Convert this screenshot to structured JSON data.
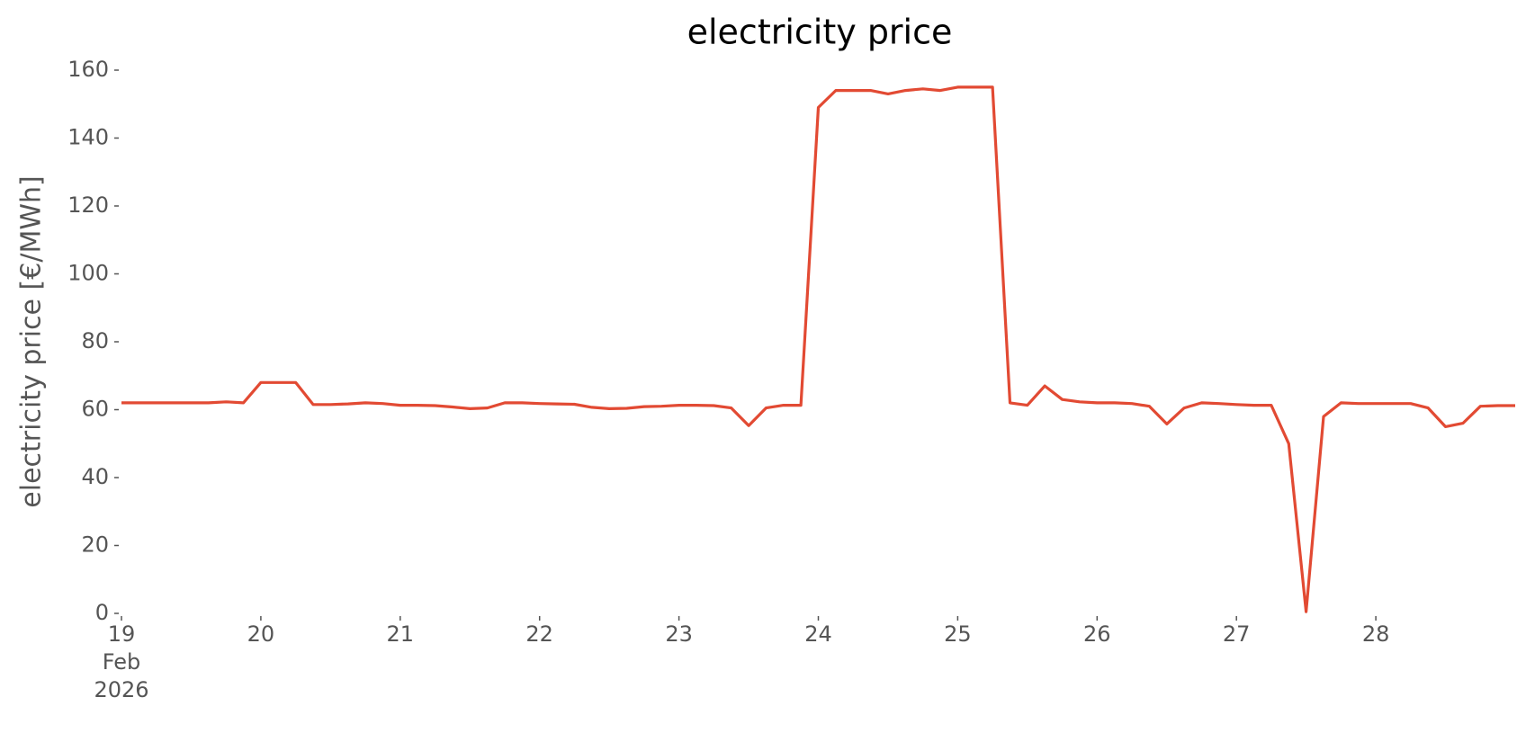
{
  "chart_data": {
    "type": "line",
    "title": "electricity price",
    "ylabel": "electricity price [€/MWh]",
    "x": [
      19,
      19.125,
      19.25,
      19.375,
      19.5,
      19.625,
      19.75,
      19.875,
      20,
      20.125,
      20.25,
      20.375,
      20.5,
      20.625,
      20.75,
      20.875,
      21,
      21.125,
      21.25,
      21.375,
      21.5,
      21.625,
      21.75,
      21.875,
      22,
      22.125,
      22.25,
      22.375,
      22.5,
      22.625,
      22.75,
      22.875,
      23,
      23.125,
      23.25,
      23.375,
      23.5,
      23.625,
      23.75,
      23.875,
      24,
      24.125,
      24.25,
      24.375,
      24.5,
      24.625,
      24.75,
      24.875,
      25,
      25.125,
      25.25,
      25.375,
      25.5,
      25.625,
      25.75,
      25.875,
      26,
      26.125,
      26.25,
      26.375,
      26.5,
      26.625,
      26.75,
      26.875,
      27,
      27.125,
      27.25,
      27.375,
      27.5,
      27.625,
      27.75,
      27.875,
      28,
      28.125,
      28.25,
      28.375,
      28.5,
      28.625,
      28.75,
      28.875,
      29
    ],
    "series": [
      {
        "name": "electricity price",
        "color": "#e24a33",
        "values": [
          62,
          62,
          62,
          62,
          62,
          62,
          62.3,
          62,
          68,
          68,
          68,
          61.5,
          61.5,
          61.7,
          62,
          61.8,
          61.3,
          61.3,
          61.2,
          60.8,
          60.3,
          60.5,
          62,
          62,
          61.8,
          61.7,
          61.6,
          60.7,
          60.3,
          60.4,
          60.9,
          61,
          61.3,
          61.3,
          61.2,
          60.5,
          55.3,
          60.5,
          61.3,
          61.3,
          149,
          154,
          154,
          154,
          153,
          154,
          154.5,
          154,
          155,
          155,
          155,
          62,
          61.3,
          67,
          63,
          62.3,
          62,
          62,
          61.8,
          61,
          55.8,
          60.5,
          62,
          61.8,
          61.5,
          61.3,
          61.3,
          50,
          0.5,
          58,
          62,
          61.8,
          61.8,
          61.8,
          61.8,
          60.5,
          55,
          56,
          61,
          61.2,
          61.2
        ]
      }
    ],
    "xlim": [
      19,
      29
    ],
    "xticks": [
      {
        "value": 19,
        "label": "19\nFeb\n2026"
      },
      20,
      21,
      22,
      23,
      24,
      25,
      26,
      27,
      28
    ],
    "ylim": [
      0,
      160
    ],
    "yticks": [
      0,
      20,
      40,
      60,
      80,
      100,
      120,
      140,
      160
    ],
    "grid": false
  }
}
